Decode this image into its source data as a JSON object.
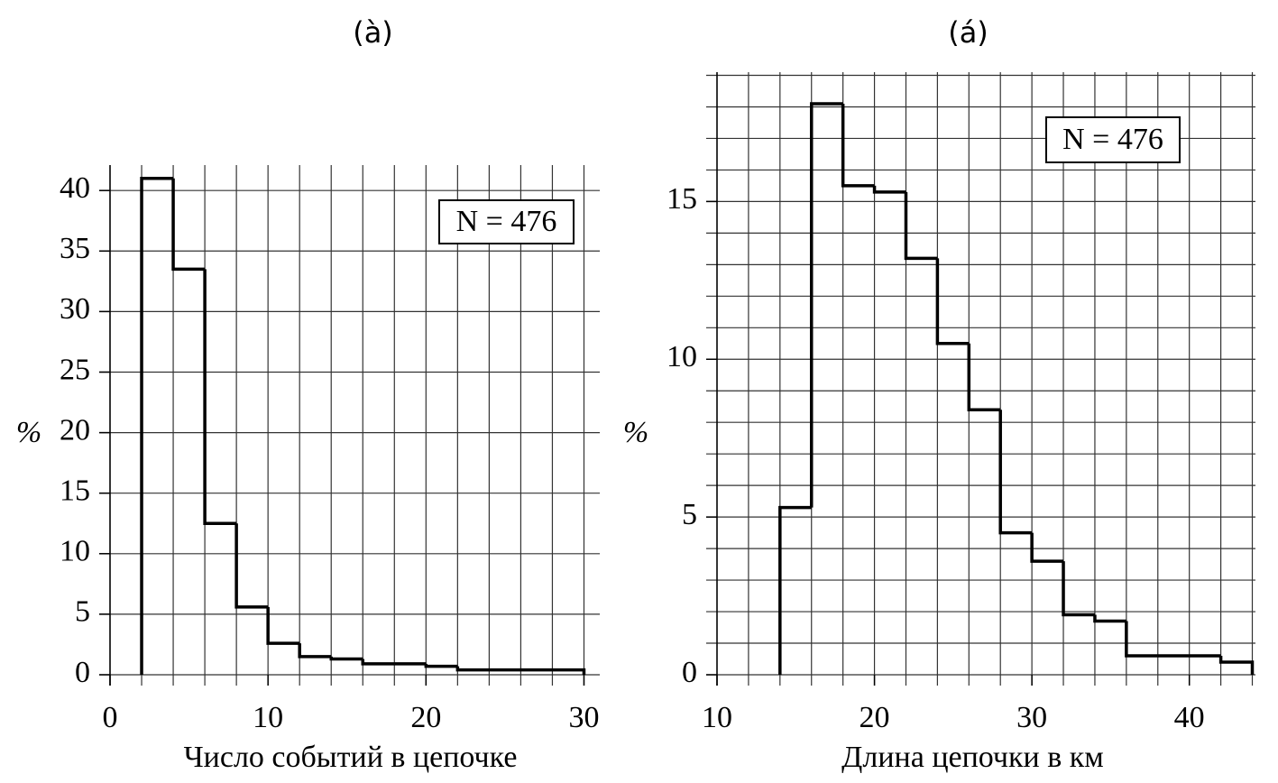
{
  "chart_data": [
    {
      "type": "histogram",
      "title": "(à)",
      "xlabel": "Число событий в цепочке",
      "ylabel": "%",
      "annotation": "N = 476",
      "bins": [
        2,
        4,
        6,
        8,
        10,
        12,
        14,
        16,
        18,
        20,
        22,
        24,
        26,
        28,
        30
      ],
      "values": [
        41,
        33.5,
        12.5,
        5.6,
        2.6,
        1.5,
        1.3,
        0.9,
        0.9,
        0.7,
        0.4,
        0.4,
        0.4,
        0.4
      ],
      "color": "#000000",
      "xlim": [
        0,
        31
      ],
      "ylim": [
        0,
        42.1
      ],
      "xticks": [
        0,
        10,
        20,
        30
      ],
      "yticks": [
        0,
        5,
        10,
        15,
        20,
        25,
        30,
        35,
        40
      ],
      "xgrid": [
        0,
        2,
        4,
        6,
        8,
        10,
        12,
        14,
        16,
        18,
        20,
        22,
        24,
        26,
        28,
        30
      ],
      "ygrid": [
        0,
        5,
        10,
        15,
        20,
        25,
        30,
        35,
        40
      ],
      "grid": true
    },
    {
      "type": "histogram",
      "title": "(á)",
      "xlabel": "Длина цепочки в км",
      "ylabel": "%",
      "annotation": "N = 476",
      "bins": [
        14,
        16,
        18,
        20,
        22,
        24,
        26,
        28,
        30,
        32,
        34,
        36,
        38,
        40,
        42,
        44
      ],
      "values": [
        5.3,
        18.1,
        15.5,
        15.3,
        13.2,
        10.5,
        8.4,
        4.5,
        3.6,
        1.9,
        1.7,
        0.6,
        0.6,
        0.6,
        0.4
      ],
      "color": "#000000",
      "xlim": [
        10,
        44.2
      ],
      "ylim": [
        0,
        19.1
      ],
      "xticks": [
        10,
        20,
        30,
        40
      ],
      "yticks": [
        0,
        5,
        10,
        15
      ],
      "xgrid": [
        10,
        12,
        14,
        16,
        18,
        20,
        22,
        24,
        26,
        28,
        30,
        32,
        34,
        36,
        38,
        40,
        42,
        44
      ],
      "ygrid": [
        0,
        1,
        2,
        3,
        4,
        5,
        6,
        7,
        8,
        9,
        10,
        11,
        12,
        13,
        14,
        15,
        16,
        17,
        18,
        19
      ],
      "grid": true
    }
  ]
}
